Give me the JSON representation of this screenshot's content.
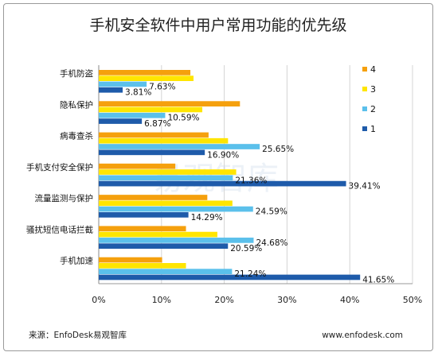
{
  "chart_data": {
    "type": "bar",
    "orientation": "horizontal",
    "title": "手机安全软件中用户常用功能的优先级",
    "categories": [
      "手机防盗",
      "隐私保护",
      "病毒查杀",
      "手机支付安全保护",
      "流量监测与保护",
      "骚扰短信电话拦截",
      "手机加速"
    ],
    "series": [
      {
        "name": "4",
        "color": "#F5A00D",
        "values": [
          14.6,
          22.5,
          17.5,
          12.2,
          17.3,
          13.9,
          10.1
        ]
      },
      {
        "name": "3",
        "color": "#FFE500",
        "values": [
          15.1,
          16.5,
          20.6,
          21.9,
          21.3,
          18.9,
          13.9
        ]
      },
      {
        "name": "2",
        "color": "#5BC0EB",
        "values": [
          7.63,
          10.59,
          25.65,
          21.36,
          24.59,
          24.68,
          21.24
        ]
      },
      {
        "name": "1",
        "color": "#1E5BAA",
        "values": [
          3.81,
          6.87,
          16.9,
          39.41,
          14.29,
          20.59,
          41.65
        ]
      }
    ],
    "data_labels": [
      [
        "",
        "",
        "7.63%",
        "3.81%"
      ],
      [
        "",
        "",
        "10.59%",
        "6.87%"
      ],
      [
        "",
        "",
        "25.65%",
        "16.90%"
      ],
      [
        "",
        "",
        "21.36%",
        "39.41%"
      ],
      [
        "",
        "",
        "24.59%",
        "14.29%"
      ],
      [
        "",
        "",
        "24.68%",
        "20.59%"
      ],
      [
        "",
        "",
        "21.24%",
        "41.65%"
      ]
    ],
    "xlim": [
      0,
      50
    ],
    "x_ticks": [
      "0%",
      "10%",
      "20%",
      "30%",
      "40%",
      "50%"
    ],
    "grid": true,
    "legend_position": "right",
    "source": "来源：EnfoDesk易观智库",
    "website": "www.enfodesk.com",
    "watermark": "易观智库"
  }
}
